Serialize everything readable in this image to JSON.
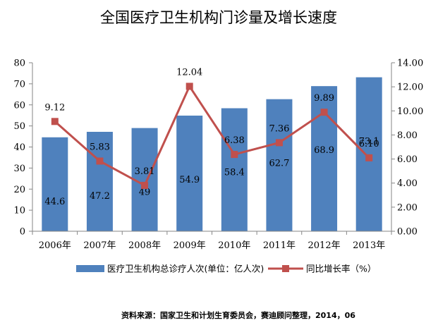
{
  "chart_data": {
    "type": "bar",
    "title": "全国医疗卫生机构门诊量及增长速度",
    "categories": [
      "2006年",
      "2007年",
      "2008年",
      "2009年",
      "2010年",
      "2011年",
      "2012年",
      "2013年"
    ],
    "series": [
      {
        "name": "医疗卫生机构总诊疗人次(单位：亿人次)",
        "type": "bar",
        "axis": "left",
        "values": [
          44.6,
          47.2,
          49,
          54.9,
          58.4,
          62.7,
          68.9,
          73.1
        ],
        "labels": [
          "44.6",
          "47.2",
          "49",
          "54.9",
          "58.4",
          "62.7",
          "68.9",
          "73.1"
        ],
        "color": "#4f81bd"
      },
      {
        "name": "同比增长率（%）",
        "type": "line",
        "axis": "right",
        "values": [
          9.12,
          5.83,
          3.81,
          12.04,
          6.38,
          7.36,
          9.89,
          6.1
        ],
        "labels": [
          "9.12",
          "5.83",
          "3.81",
          "12.04",
          "6.38",
          "7.36",
          "9.89",
          "6.10"
        ],
        "color": "#c0504d"
      }
    ],
    "ylim_left": [
      0,
      80
    ],
    "yticks_left": [
      "0",
      "10",
      "20",
      "30",
      "40",
      "50",
      "60",
      "70",
      "80"
    ],
    "ylim_right": [
      0,
      14
    ],
    "yticks_right": [
      "0.00",
      "2.00",
      "4.00",
      "6.00",
      "8.00",
      "10.00",
      "12.00",
      "14.00"
    ],
    "source": "资料来源：国家卫生和计划生育委员会，赛迪顾问整理，2014，06",
    "legend_position": "bottom",
    "grid": false
  }
}
